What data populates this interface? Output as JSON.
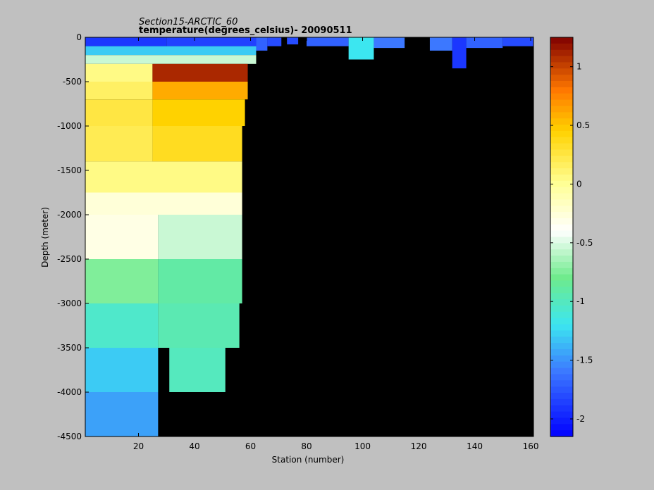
{
  "chart_data": {
    "type": "heatmap",
    "title_lines": [
      "Section15-ARCTIC_60",
      "temperature(degrees_celsius)- 20090511"
    ],
    "xlabel": "Station (number)",
    "ylabel": "Depth (meter)",
    "x_range": [
      1,
      161
    ],
    "y_range": [
      -4500,
      0
    ],
    "x_ticks": [
      20,
      40,
      60,
      80,
      100,
      120,
      140,
      160
    ],
    "x_tick_labels": [
      "20",
      "40",
      "60",
      "80",
      "100",
      "120",
      "140",
      "160"
    ],
    "y_ticks": [
      0,
      -500,
      -1000,
      -1500,
      -2000,
      -2500,
      -3000,
      -3500,
      -4000,
      -4500
    ],
    "y_tick_labels": [
      "0",
      "-500",
      "-1000",
      "-1500",
      "-2000",
      "-2500",
      "-3000",
      "-3500",
      "-4000",
      "-4500"
    ],
    "colorbar": {
      "range": [
        -2.15,
        1.25
      ],
      "ticks": [
        1,
        0.5,
        0,
        -0.5,
        -1,
        -1.5,
        -2
      ],
      "tick_labels": [
        "1",
        "0.5",
        "0",
        "-0.5",
        "-1",
        "-1.5",
        "-2"
      ],
      "colormap": "jet-with-white-center"
    },
    "no_data_color": "#000000",
    "background_color": "#c0c0c0",
    "cells": [
      {
        "x0": 1,
        "x1": 30,
        "y0": 0,
        "y1": -100,
        "value": -1.9
      },
      {
        "x0": 30,
        "x1": 62,
        "y0": 0,
        "y1": -100,
        "value": -1.85
      },
      {
        "x0": 1,
        "x1": 62,
        "y0": -100,
        "y1": -200,
        "value": -1.3
      },
      {
        "x0": 1,
        "x1": 62,
        "y0": -200,
        "y1": -300,
        "value": -0.55
      },
      {
        "x0": 62,
        "x1": 66,
        "y0": 0,
        "y1": -150,
        "value": -1.7
      },
      {
        "x0": 66,
        "x1": 71,
        "y0": 0,
        "y1": -100,
        "value": -1.8
      },
      {
        "x0": 73,
        "x1": 77,
        "y0": 0,
        "y1": -80,
        "value": -1.8
      },
      {
        "x0": 80,
        "x1": 95,
        "y0": 0,
        "y1": -100,
        "value": -1.7
      },
      {
        "x0": 95,
        "x1": 104,
        "y0": 0,
        "y1": -250,
        "value": -1.2
      },
      {
        "x0": 104,
        "x1": 115,
        "y0": 0,
        "y1": -120,
        "value": -1.6
      },
      {
        "x0": 124,
        "x1": 132,
        "y0": 0,
        "y1": -150,
        "value": -1.6
      },
      {
        "x0": 132,
        "x1": 137,
        "y0": 0,
        "y1": -350,
        "value": -1.9
      },
      {
        "x0": 137,
        "x1": 150,
        "y0": 0,
        "y1": -120,
        "value": -1.7
      },
      {
        "x0": 150,
        "x1": 161,
        "y0": 0,
        "y1": -100,
        "value": -1.8
      },
      {
        "x0": 1,
        "x1": 25,
        "y0": -300,
        "y1": -500,
        "value": 0.05
      },
      {
        "x0": 25,
        "x1": 59,
        "y0": -300,
        "y1": -500,
        "value": 1.1
      },
      {
        "x0": 1,
        "x1": 25,
        "y0": -500,
        "y1": -700,
        "value": 0.15
      },
      {
        "x0": 25,
        "x1": 59,
        "y0": -500,
        "y1": -700,
        "value": 0.6
      },
      {
        "x0": 1,
        "x1": 25,
        "y0": -700,
        "y1": -1000,
        "value": 0.25
      },
      {
        "x0": 25,
        "x1": 58,
        "y0": -700,
        "y1": -1000,
        "value": 0.45
      },
      {
        "x0": 1,
        "x1": 25,
        "y0": -1000,
        "y1": -1400,
        "value": 0.2
      },
      {
        "x0": 25,
        "x1": 57,
        "y0": -1000,
        "y1": -1400,
        "value": 0.35
      },
      {
        "x0": 1,
        "x1": 57,
        "y0": -1400,
        "y1": -1750,
        "value": 0.05
      },
      {
        "x0": 1,
        "x1": 57,
        "y0": -1750,
        "y1": -2000,
        "value": -0.25
      },
      {
        "x0": 1,
        "x1": 27,
        "y0": -2000,
        "y1": -2500,
        "value": -0.3
      },
      {
        "x0": 27,
        "x1": 57,
        "y0": -2000,
        "y1": -2500,
        "value": -0.55
      },
      {
        "x0": 1,
        "x1": 27,
        "y0": -2500,
        "y1": -3000,
        "value": -0.75
      },
      {
        "x0": 27,
        "x1": 57,
        "y0": -2500,
        "y1": -3000,
        "value": -0.9
      },
      {
        "x0": 1,
        "x1": 27,
        "y0": -3000,
        "y1": -3500,
        "value": -1.05
      },
      {
        "x0": 27,
        "x1": 56,
        "y0": -3000,
        "y1": -3500,
        "value": -0.95
      },
      {
        "x0": 1,
        "x1": 27,
        "y0": -3500,
        "y1": -4000,
        "value": -1.3
      },
      {
        "x0": 31,
        "x1": 51,
        "y0": -3500,
        "y1": -4000,
        "value": -1.0
      },
      {
        "x0": 1,
        "x1": 27,
        "y0": -4000,
        "y1": -4500,
        "value": -1.45
      }
    ]
  }
}
